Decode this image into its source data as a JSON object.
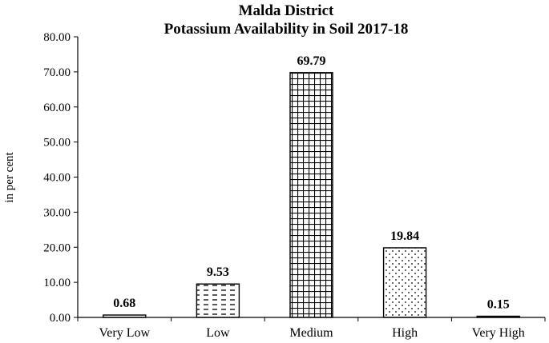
{
  "chart_data": {
    "type": "bar",
    "title": "Malda District",
    "subtitle": "Potassium Availability in Soil 2017-18",
    "ylabel": "in per cent",
    "xlabel": "",
    "ylim": [
      0,
      80
    ],
    "yticks": [
      "0.00",
      "10.00",
      "20.00",
      "30.00",
      "40.00",
      "50.00",
      "60.00",
      "70.00",
      "80.00"
    ],
    "categories": [
      "Very Low",
      "Low",
      "Medium",
      "High",
      "Very High"
    ],
    "values": [
      0.68,
      9.53,
      69.79,
      19.84,
      0.15
    ],
    "data_labels": [
      "0.68",
      "9.53",
      "69.79",
      "19.84",
      "0.15"
    ],
    "patterns": [
      "plain",
      "dashes",
      "grid",
      "dots",
      "plain"
    ],
    "grid": false,
    "legend": "none"
  }
}
